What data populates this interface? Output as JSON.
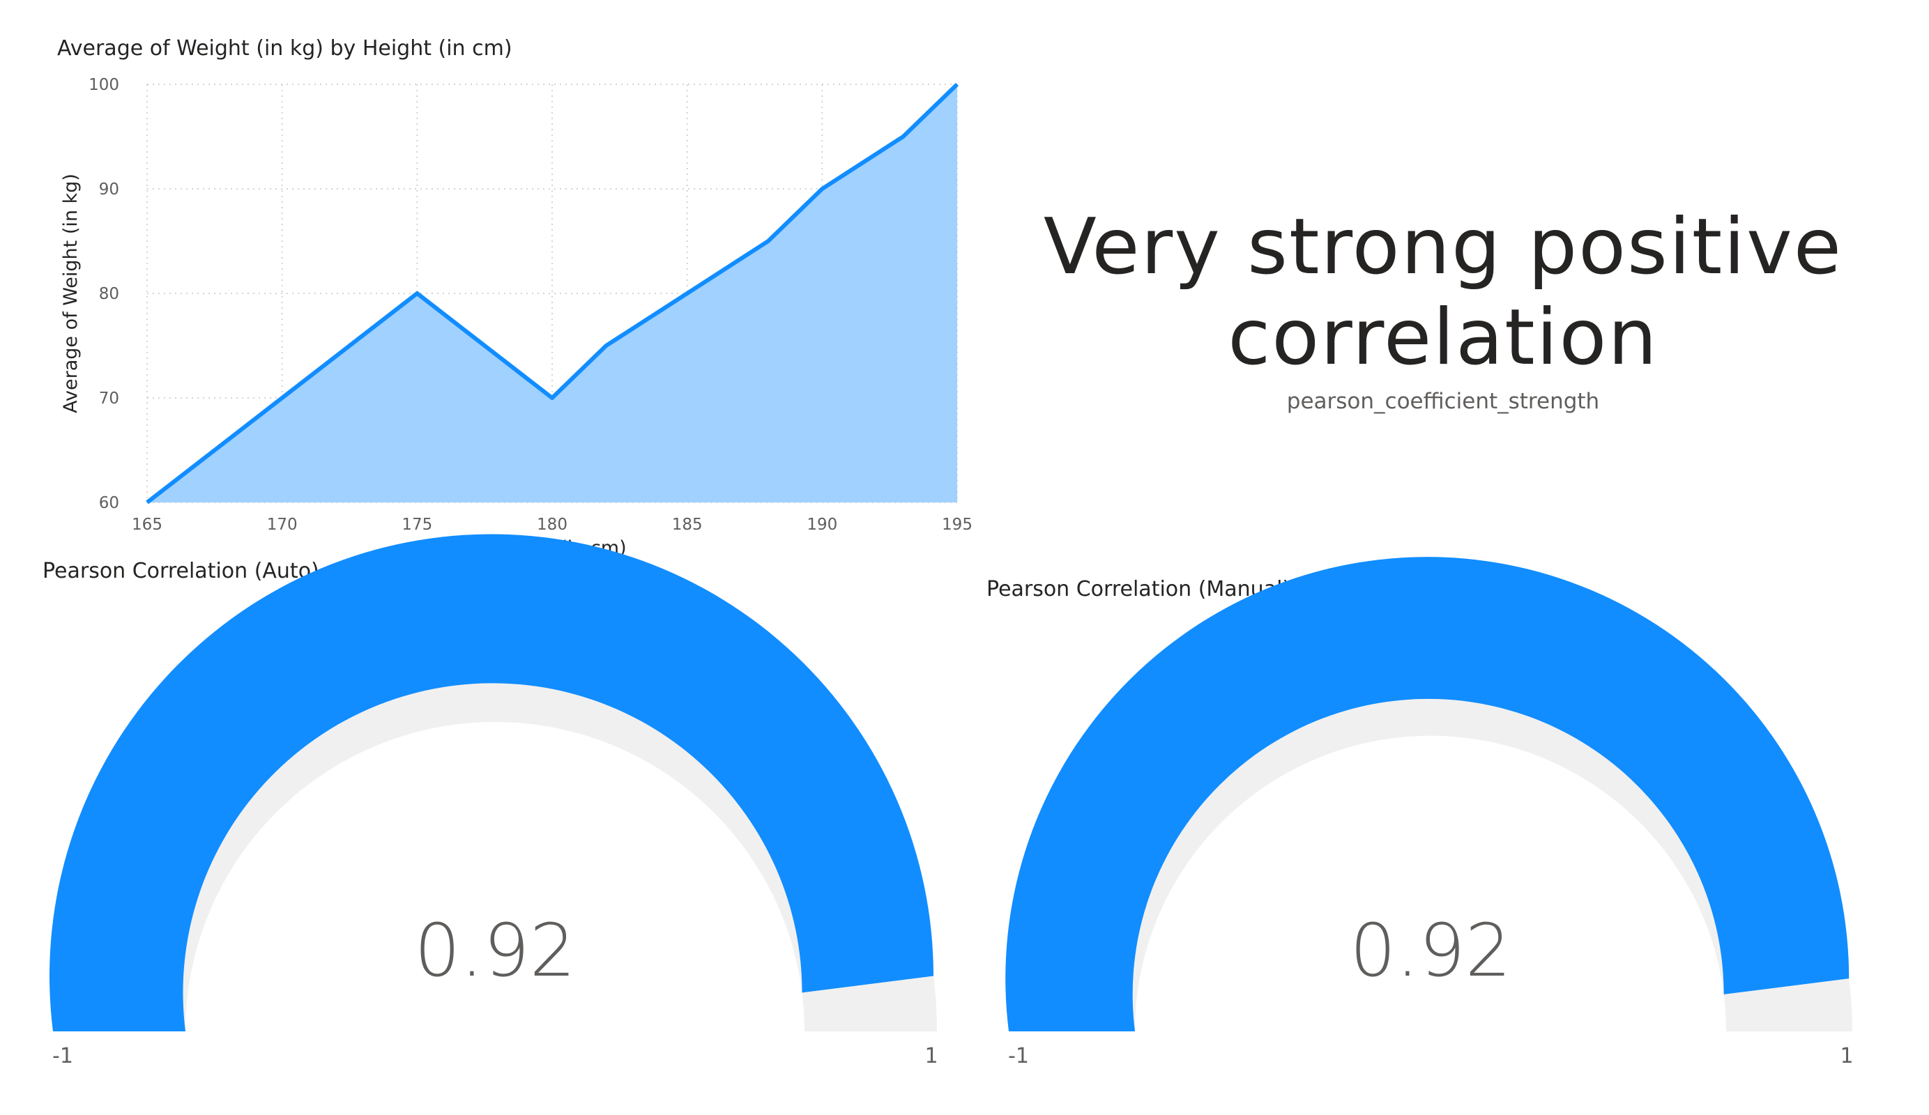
{
  "colors": {
    "accent": "#118DFF",
    "area_fill": "#A0D1FF",
    "gauge_track": "#F0F0F0",
    "grid": "#C8C6C4"
  },
  "area_chart": {
    "title": "Average of Weight (in kg) by Height (in cm)"
  },
  "chart_data": [
    {
      "type": "area",
      "title": "Average of Weight (in kg) by Height (in cm)",
      "xlabel": "Height (in cm)",
      "ylabel": "Average of Weight (in kg)",
      "x": [
        165,
        175,
        180,
        182,
        188,
        190,
        193,
        195
      ],
      "y": [
        60,
        80,
        70,
        75,
        85,
        90,
        95,
        100
      ],
      "xlim": [
        165,
        195
      ],
      "ylim": [
        60,
        100
      ],
      "x_ticks": [
        "165",
        "170",
        "175",
        "180",
        "185",
        "190",
        "195"
      ],
      "y_ticks": [
        "60",
        "70",
        "80",
        "90",
        "100"
      ],
      "grid": true
    }
  ],
  "card": {
    "value": "Very strong positive correlation",
    "label": "pearson_coefficient_strength"
  },
  "gauges": [
    {
      "title": "Pearson Correlation (Auto)",
      "value": 0.92,
      "value_label": "0.92",
      "min": -1,
      "max": 1,
      "min_label": "-1",
      "max_label": "1"
    },
    {
      "title": "Pearson Correlation (Manual)",
      "value": 0.92,
      "value_label": "0.92",
      "min": -1,
      "max": 1,
      "min_label": "-1",
      "max_label": "1"
    }
  ]
}
